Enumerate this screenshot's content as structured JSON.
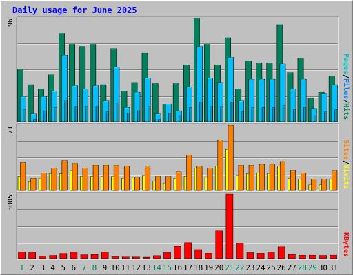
{
  "title": "Daily usage for June 2025",
  "chart_data": [
    {
      "type": "bar",
      "name": "hits-files-pages",
      "categories": [
        "1",
        "2",
        "3",
        "4",
        "5",
        "6",
        "7",
        "8",
        "9",
        "10",
        "11",
        "12",
        "13",
        "14",
        "15",
        "16",
        "17",
        "18",
        "19",
        "20",
        "21",
        "22",
        "23",
        "24",
        "25",
        "26",
        "27",
        "28",
        "29",
        "30",
        "31"
      ],
      "ymax_label": "96",
      "ylim": [
        0,
        96
      ],
      "series": [
        {
          "name": "Hits",
          "color": "#00805c",
          "values": [
            48,
            34,
            30,
            43,
            81,
            71,
            69,
            71,
            34,
            67,
            28,
            36,
            63,
            35,
            16,
            35,
            52,
            95,
            71,
            52,
            77,
            30,
            56,
            54,
            54,
            89,
            45,
            58,
            22,
            27,
            42
          ]
        },
        {
          "name": "Files",
          "color": "#00c0ff",
          "values": [
            23,
            7,
            23,
            28,
            61,
            33,
            30,
            33,
            19,
            50,
            13,
            27,
            40,
            7,
            16,
            10,
            32,
            69,
            40,
            36,
            59,
            19,
            39,
            39,
            39,
            53,
            30,
            39,
            12,
            26,
            34
          ]
        },
        {
          "name": "Pages",
          "color": "#00a0c0",
          "values": [
            11,
            2,
            10,
            13,
            20,
            14,
            14,
            14,
            9,
            18,
            8,
            10,
            14,
            2,
            8,
            5,
            13,
            18,
            14,
            14,
            18,
            9,
            13,
            13,
            13,
            15,
            11,
            13,
            6,
            9,
            11
          ]
        }
      ],
      "side_labels": [
        {
          "text": "Pages",
          "color": "#00c0c0"
        },
        {
          "text": "/",
          "color": "#000000"
        },
        {
          "text": "Files",
          "color": "#0080ff"
        },
        {
          "text": "/",
          "color": "#000000"
        },
        {
          "text": "Hits",
          "color": "#00805c"
        }
      ]
    },
    {
      "type": "bar",
      "name": "visits-sites",
      "categories": [
        "1",
        "2",
        "3",
        "4",
        "5",
        "6",
        "7",
        "8",
        "9",
        "10",
        "11",
        "12",
        "13",
        "14",
        "15",
        "16",
        "17",
        "18",
        "19",
        "20",
        "21",
        "22",
        "23",
        "24",
        "25",
        "26",
        "27",
        "28",
        "29",
        "30",
        "31"
      ],
      "ymax_label": "71",
      "ylim": [
        0,
        71
      ],
      "series": [
        {
          "name": "Visits",
          "color": "#ffff00",
          "values": [
            15,
            9,
            13,
            18,
            18,
            21,
            15,
            15,
            15,
            15,
            13,
            14,
            16,
            10,
            8,
            13,
            15,
            24,
            14,
            26,
            44,
            16,
            18,
            19,
            18,
            26,
            13,
            12,
            6,
            6,
            12
          ]
        },
        {
          "name": "Sites",
          "color": "#ff8000",
          "values": [
            30,
            13,
            19,
            24,
            32,
            29,
            24,
            27,
            27,
            27,
            26,
            14,
            26,
            15,
            15,
            20,
            38,
            26,
            24,
            54,
            70,
            27,
            27,
            28,
            28,
            31,
            21,
            19,
            12,
            12,
            21
          ]
        }
      ],
      "side_labels": [
        {
          "text": "Sites",
          "color": "#ff8000"
        },
        {
          "text": "/",
          "color": "#000000"
        },
        {
          "text": "Visits",
          "color": "#ffff00"
        }
      ]
    },
    {
      "type": "bar",
      "name": "kbytes",
      "categories": [
        "1",
        "2",
        "3",
        "4",
        "5",
        "6",
        "7",
        "8",
        "9",
        "10",
        "11",
        "12",
        "13",
        "14",
        "15",
        "16",
        "17",
        "18",
        "19",
        "20",
        "21",
        "22",
        "23",
        "24",
        "25",
        "26",
        "27",
        "28",
        "29",
        "30",
        "31"
      ],
      "ymax_label": "3005",
      "ylim": [
        0,
        3005
      ],
      "series": [
        {
          "name": "KBytes",
          "color": "#ff0000",
          "values": [
            300,
            270,
            110,
            140,
            230,
            290,
            170,
            180,
            300,
            90,
            70,
            70,
            60,
            130,
            280,
            560,
            730,
            410,
            240,
            1270,
            2970,
            700,
            270,
            240,
            290,
            540,
            180,
            150,
            150,
            140,
            150
          ]
        }
      ],
      "side_labels": [
        {
          "text": "KBytes",
          "color": "#ff0000"
        }
      ]
    }
  ],
  "x_axis": {
    "labels": [
      "1",
      "2",
      "3",
      "4",
      "5",
      "6",
      "7",
      "8",
      "9",
      "10",
      "11",
      "12",
      "13",
      "14",
      "15",
      "16",
      "17",
      "18",
      "19",
      "20",
      "21",
      "22",
      "23",
      "24",
      "25",
      "26",
      "27",
      "28",
      "29",
      "30",
      "31"
    ],
    "weekend_days": [
      1,
      7,
      8,
      14,
      15,
      21,
      22,
      28,
      29
    ],
    "weekday_color": "#000000",
    "weekend_color": "#00805c"
  }
}
